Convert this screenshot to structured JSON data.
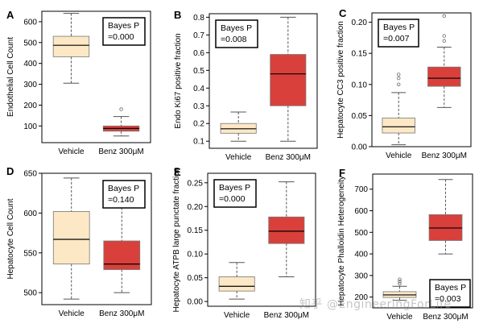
{
  "figure": {
    "watermark": "知乎 @EngineeringForLife"
  },
  "colors": {
    "vehicle_fill": "#fde8c6",
    "benz_fill": "#d9403b",
    "frame": "#000000",
    "whisker": "#555555"
  },
  "chart_data": [
    {
      "panel": "A",
      "type": "box",
      "ylabel": "Endothelial Cell Count",
      "categories": [
        "Vehicle",
        "Benz 300μM"
      ],
      "stat_label": "Bayes P",
      "stat_value": "=0.000",
      "ylim": [
        20,
        650
      ],
      "yticks": [
        100,
        200,
        300,
        400,
        500,
        600
      ],
      "boxes": [
        {
          "name": "Vehicle",
          "min": 305,
          "q1": 432,
          "median": 487,
          "q3": 530,
          "max": 640,
          "outliers": []
        },
        {
          "name": "Benz 300μM",
          "min": 52,
          "q1": 75,
          "median": 88,
          "q3": 100,
          "max": 145,
          "outliers": [
            180
          ]
        }
      ]
    },
    {
      "panel": "B",
      "type": "box",
      "ylabel": "Endo Ki67 positive fraction",
      "categories": [
        "Vehicle",
        "Benz 300μM"
      ],
      "stat_label": "Bayes P",
      "stat_value": "=0.008",
      "ylim": [
        0.06,
        0.82
      ],
      "yticks": [
        0.1,
        0.2,
        0.3,
        0.4,
        0.5,
        0.6,
        0.7,
        0.8
      ],
      "boxes": [
        {
          "name": "Vehicle",
          "min": 0.1,
          "q1": 0.145,
          "median": 0.17,
          "q3": 0.2,
          "max": 0.265,
          "outliers": []
        },
        {
          "name": "Benz 300μM",
          "min": 0.1,
          "q1": 0.3,
          "median": 0.48,
          "q3": 0.59,
          "max": 0.8,
          "outliers": []
        }
      ]
    },
    {
      "panel": "C",
      "type": "box",
      "ylabel": "Hepatocyte CC3 positive fraction",
      "categories": [
        "Vehicle",
        "Benz 300μM"
      ],
      "stat_label": "Bayes P",
      "stat_value": "=0.007",
      "ylim": [
        0,
        0.215
      ],
      "yticks": [
        0.0,
        0.05,
        0.1,
        0.15,
        0.2
      ],
      "boxes": [
        {
          "name": "Vehicle",
          "min": 0.003,
          "q1": 0.022,
          "median": 0.032,
          "q3": 0.046,
          "max": 0.087,
          "outliers": [
            0.1,
            0.11,
            0.116
          ]
        },
        {
          "name": "Benz 300μM",
          "min": 0.063,
          "q1": 0.097,
          "median": 0.11,
          "q3": 0.128,
          "max": 0.16,
          "outliers": [
            0.17,
            0.178,
            0.21
          ]
        }
      ]
    },
    {
      "panel": "D",
      "type": "box",
      "ylabel": "Hepatocyte Cell Count",
      "categories": [
        "Vehicle",
        "Benz 300μM"
      ],
      "stat_label": "Bayes P",
      "stat_value": "=0.140",
      "ylim": [
        485,
        650
      ],
      "yticks": [
        500,
        550,
        600,
        650
      ],
      "boxes": [
        {
          "name": "Vehicle",
          "min": 492,
          "q1": 536,
          "median": 567,
          "q3": 602,
          "max": 644,
          "outliers": []
        },
        {
          "name": "Benz 300μM",
          "min": 500,
          "q1": 529,
          "median": 536,
          "q3": 565,
          "max": 607,
          "outliers": []
        }
      ]
    },
    {
      "panel": "E",
      "type": "box",
      "ylabel": "Hepatocyte ATPB large punctate fraction",
      "categories": [
        "Vehicle",
        "Benz 300μM"
      ],
      "stat_label": "Bayes P",
      "stat_value": "=0.000",
      "ylim": [
        -0.01,
        0.27
      ],
      "yticks": [
        0.0,
        0.05,
        0.1,
        0.15,
        0.2,
        0.25
      ],
      "boxes": [
        {
          "name": "Vehicle",
          "min": 0.005,
          "q1": 0.022,
          "median": 0.032,
          "q3": 0.052,
          "max": 0.082,
          "outliers": []
        },
        {
          "name": "Benz 300μM",
          "min": 0.052,
          "q1": 0.122,
          "median": 0.148,
          "q3": 0.178,
          "max": 0.252,
          "outliers": []
        }
      ]
    },
    {
      "panel": "F",
      "type": "box",
      "ylabel": "Hepatocyte Phalloidin Heterogeneity",
      "categories": [
        "Vehicle",
        "Benz 300μM"
      ],
      "stat_label": "Bayes P",
      "stat_value": "=0.003",
      "ylim": [
        150,
        770
      ],
      "yticks": [
        200,
        300,
        400,
        500,
        600,
        700
      ],
      "boxes": [
        {
          "name": "Vehicle",
          "min": 185,
          "q1": 198,
          "median": 210,
          "q3": 225,
          "max": 250,
          "outliers": [
            262,
            272,
            282
          ]
        },
        {
          "name": "Benz 300μM",
          "min": 400,
          "q1": 462,
          "median": 520,
          "q3": 582,
          "max": 745,
          "outliers": []
        }
      ]
    }
  ]
}
